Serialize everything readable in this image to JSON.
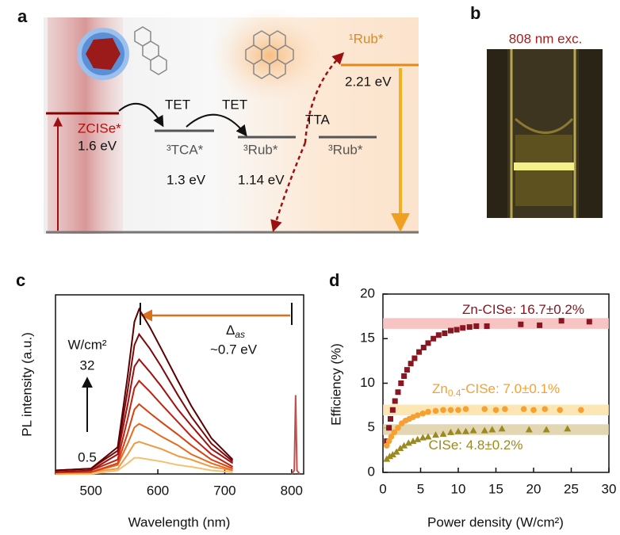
{
  "panel_a": {
    "label": "a",
    "zcise": "ZCISe*",
    "zcise_energy": "1.6 eV",
    "tet1": "TET",
    "tet2": "TET",
    "tca": "³TCA*",
    "tca_energy": "1.3 eV",
    "rub_t1": "³Rub*",
    "rub_t1_energy": "1.14 eV",
    "tta": "TTA",
    "rub_t2": "³Rub*",
    "rub_s1": "¹Rub*",
    "rub_s1_energy": "2.21 eV"
  },
  "panel_b": {
    "label": "b",
    "excitation": "808 nm exc."
  },
  "chart_data": [
    {
      "type": "line",
      "panel_label": "c",
      "xlabel": "Wavelength (nm)",
      "ylabel": "PL intensity (a.u.)",
      "x": [
        447,
        500,
        540,
        555,
        565,
        572,
        588,
        605,
        630,
        650,
        680,
        712
      ],
      "series": [
        {
          "color": "#5a0000",
          "values": [
            0.02,
            0.03,
            0.15,
            0.55,
            0.85,
            0.92,
            0.82,
            0.7,
            0.52,
            0.38,
            0.2,
            0.08
          ]
        },
        {
          "color": "#7a0a0a",
          "values": [
            0.02,
            0.03,
            0.13,
            0.47,
            0.72,
            0.78,
            0.7,
            0.6,
            0.44,
            0.32,
            0.17,
            0.07
          ]
        },
        {
          "color": "#a01010",
          "values": [
            0.01,
            0.02,
            0.11,
            0.39,
            0.6,
            0.64,
            0.57,
            0.49,
            0.36,
            0.27,
            0.14,
            0.06
          ]
        },
        {
          "color": "#c02010",
          "values": [
            0.01,
            0.02,
            0.08,
            0.31,
            0.48,
            0.52,
            0.46,
            0.39,
            0.29,
            0.21,
            0.11,
            0.04
          ]
        },
        {
          "color": "#d84010",
          "values": [
            0.01,
            0.01,
            0.06,
            0.23,
            0.36,
            0.39,
            0.34,
            0.29,
            0.22,
            0.16,
            0.08,
            0.03
          ]
        },
        {
          "color": "#e86a20",
          "values": [
            0.01,
            0.01,
            0.05,
            0.17,
            0.26,
            0.28,
            0.25,
            0.21,
            0.16,
            0.11,
            0.06,
            0.02
          ]
        },
        {
          "color": "#f09a40",
          "values": [
            0,
            0.01,
            0.03,
            0.11,
            0.17,
            0.18,
            0.16,
            0.14,
            0.1,
            0.08,
            0.04,
            0.02
          ]
        },
        {
          "color": "#f5c070",
          "values": [
            0,
            0,
            0.02,
            0.06,
            0.09,
            0.09,
            0.08,
            0.07,
            0.05,
            0.04,
            0.02,
            0.01
          ]
        }
      ],
      "laser": {
        "color": "#c0504d",
        "x": [
          800,
          804,
          806,
          808,
          812
        ],
        "values": [
          0,
          0.02,
          0.44,
          0.02,
          0
        ]
      },
      "xlim": [
        447,
        818
      ],
      "xticks": [
        500,
        600,
        700,
        800
      ],
      "ylim": [
        0,
        1
      ],
      "annotations": {
        "delta": "Δ",
        "delta_sub": "as",
        "shift": "~0.7 eV",
        "unit": "W/cm²",
        "max_power": "32",
        "min_power": "0.5"
      }
    },
    {
      "type": "scatter",
      "panel_label": "d",
      "xlabel": "Power density (W/cm²)",
      "ylabel": "Efficiency (%)",
      "xlim": [
        0,
        30
      ],
      "xticks": [
        0,
        5,
        10,
        15,
        20,
        25,
        30
      ],
      "ylim": [
        0,
        20
      ],
      "yticks": [
        0,
        5,
        10,
        15,
        20
      ],
      "series": [
        {
          "label_parts": [
            "Zn-CISe: 16.7±0.2%"
          ],
          "color": "#8b1520",
          "band_color": "#f6b8b8",
          "marker": "square",
          "plateau": 16.7,
          "x": [
            0.5,
            0.8,
            1,
            1.3,
            1.6,
            2,
            2.4,
            2.8,
            3.2,
            3.7,
            4.2,
            4.8,
            5.4,
            6,
            6.7,
            7.4,
            8.2,
            9,
            9.8,
            10.6,
            11.5,
            12.4,
            13.8,
            18.3,
            20.8,
            23.7,
            27.4
          ],
          "values": [
            3.5,
            5,
            6,
            7,
            8,
            9,
            10,
            10.8,
            11.5,
            12.2,
            12.8,
            13.5,
            14,
            14.5,
            15,
            15.4,
            15.6,
            15.9,
            16,
            16.2,
            16.3,
            16.4,
            16.4,
            16.6,
            16.5,
            17,
            16.9
          ]
        },
        {
          "label_parts": [
            "Zn",
            "0.4",
            "-CISe: 7.0±0.1%"
          ],
          "color": "#f5a030",
          "band_color": "#fbe2a6",
          "marker": "circle",
          "plateau": 7.0,
          "x": [
            0.5,
            0.8,
            1.1,
            1.5,
            2,
            2.5,
            3,
            3.5,
            4,
            4.6,
            5.3,
            6,
            7,
            8,
            9,
            10,
            11,
            13.5,
            15,
            16.2,
            18.7,
            20,
            21.5,
            23.5,
            26.3
          ],
          "values": [
            3,
            3.5,
            4,
            4.5,
            5,
            5.5,
            5.8,
            6,
            6.2,
            6.4,
            6.6,
            6.8,
            6.9,
            7,
            7,
            7,
            7.1,
            7.1,
            7,
            7.1,
            7.1,
            7,
            7.1,
            7,
            7
          ]
        },
        {
          "label_parts": [
            "CISe: 4.8±0.2%"
          ],
          "color": "#9a8a20",
          "band_color": "#ddcfa6",
          "marker": "triangle",
          "plateau": 4.8,
          "x": [
            0.5,
            0.9,
            1.3,
            1.8,
            2.3,
            2.8,
            3.4,
            4,
            4.6,
            5.3,
            6,
            7,
            8,
            9,
            10,
            11,
            12,
            13.5,
            14.5,
            15.8,
            19.4,
            21.7,
            24.5
          ],
          "values": [
            1.5,
            1.8,
            2,
            2.3,
            2.7,
            3,
            3.3,
            3.5,
            3.7,
            3.9,
            4,
            4.2,
            4.3,
            4.5,
            4.6,
            4.6,
            4.7,
            4.7,
            4.8,
            4.9,
            4.8,
            4.8,
            4.9
          ]
        }
      ]
    }
  ]
}
